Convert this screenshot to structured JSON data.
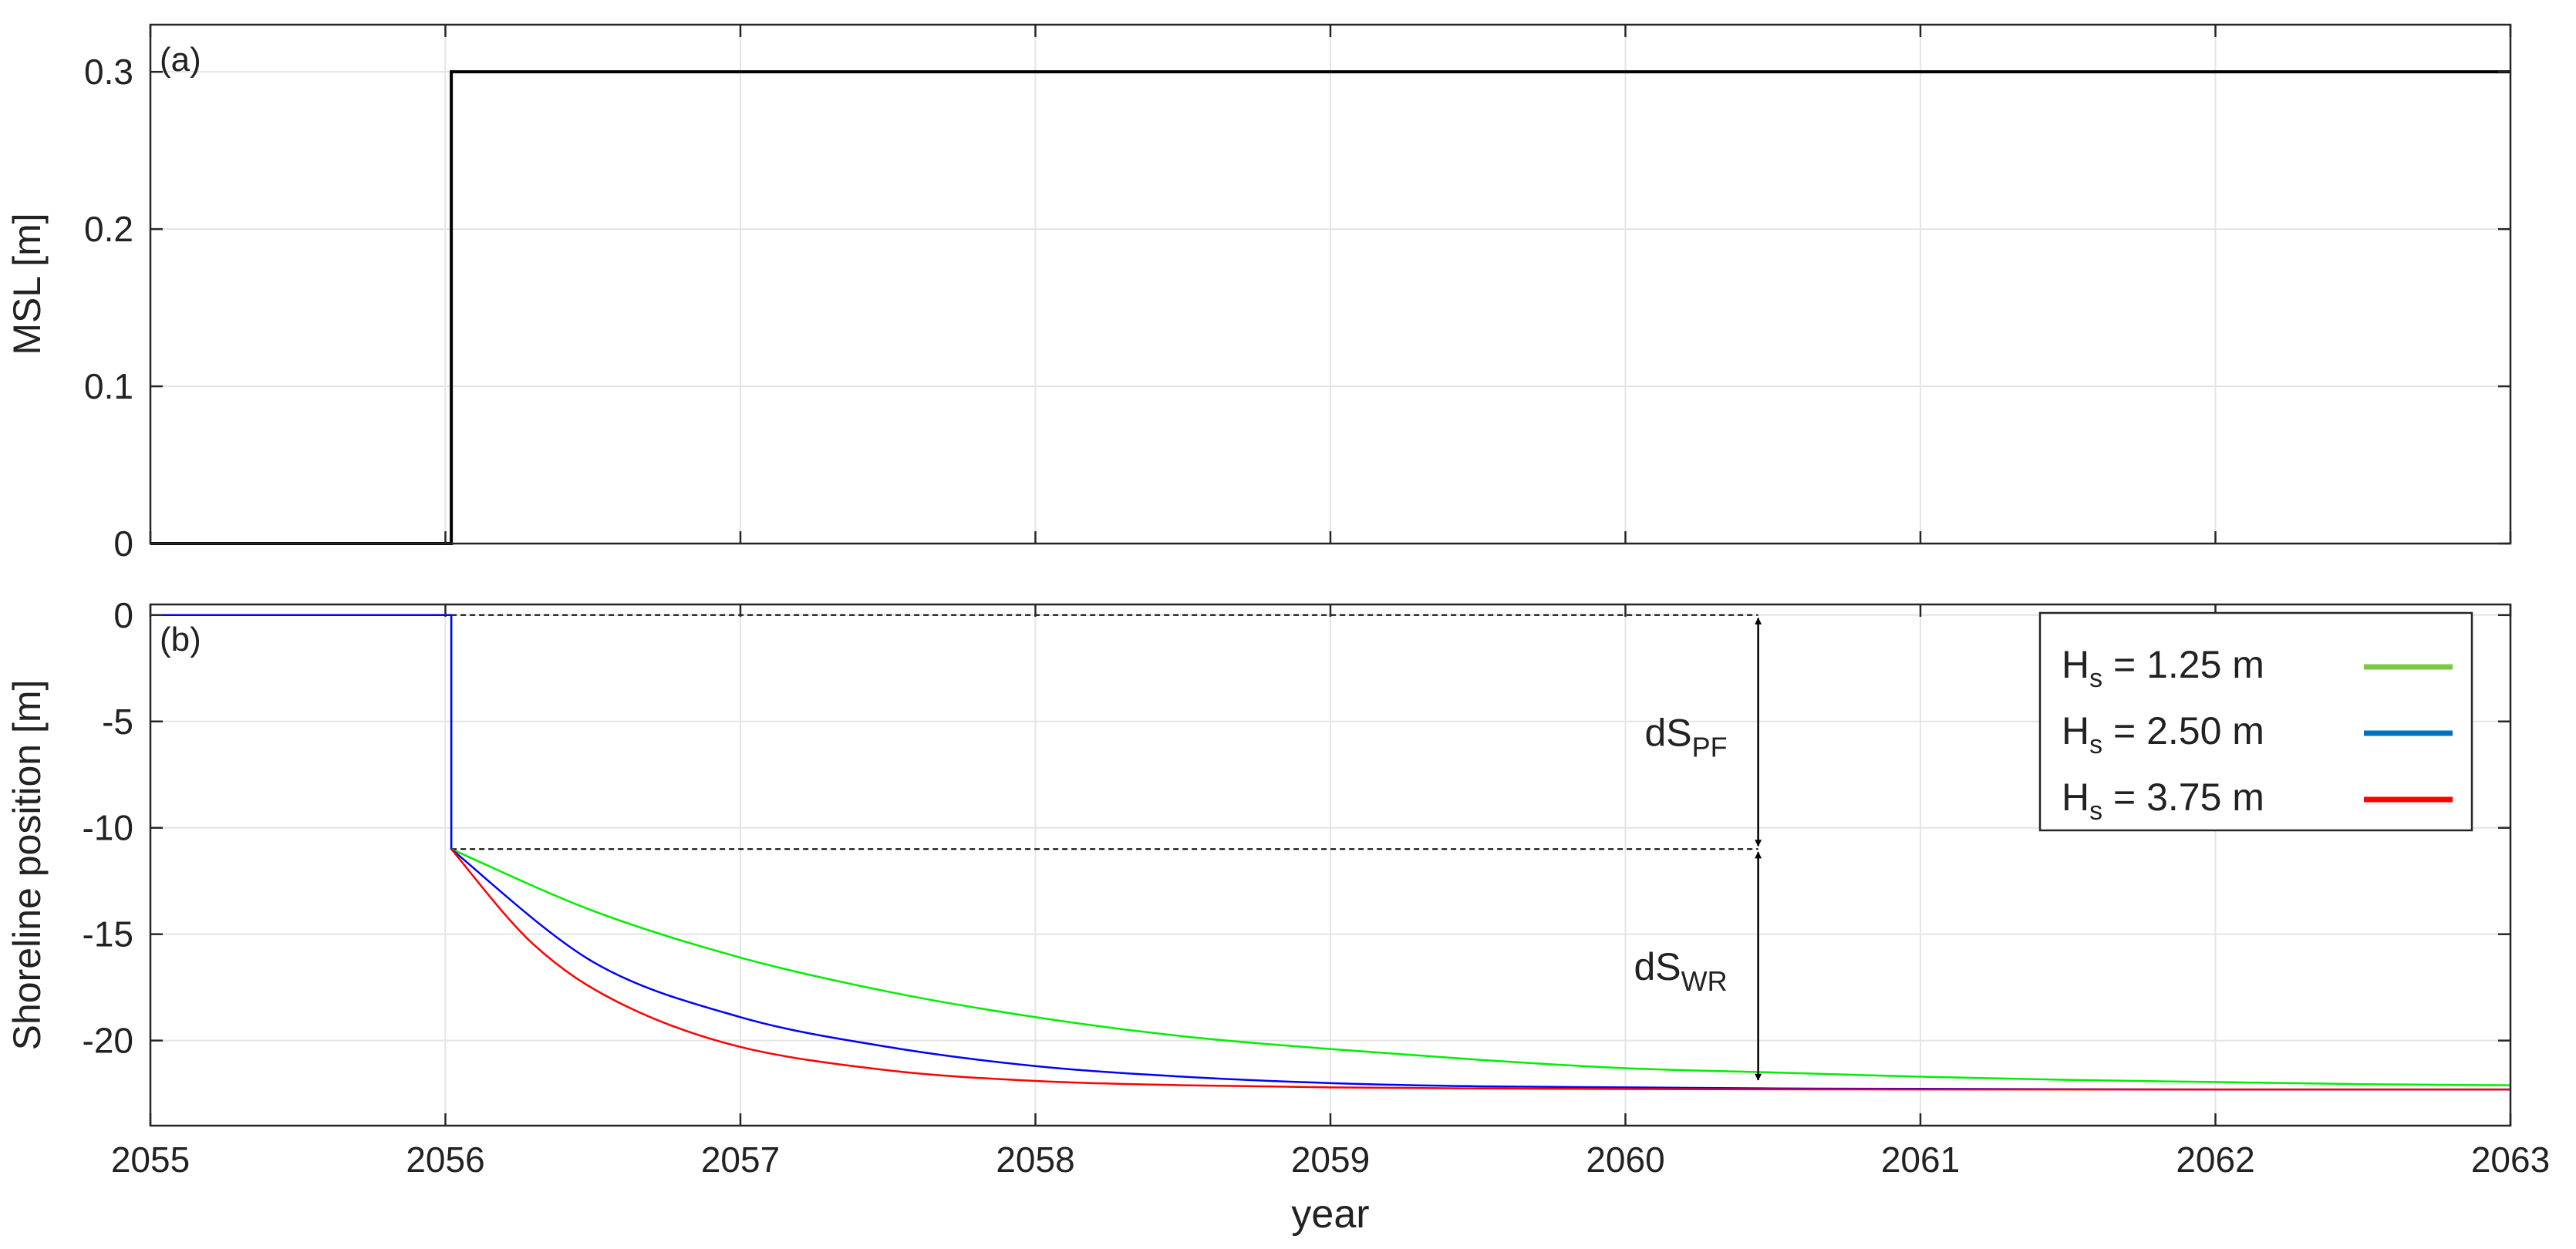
{
  "chart_data": [
    {
      "panel": "(a)",
      "type": "line",
      "ylabel": "MSL [m]",
      "xlim": [
        2055,
        2063
      ],
      "ylim": [
        0,
        0.33
      ],
      "yticks": [
        0,
        0.1,
        0.2,
        0.3
      ],
      "ytick_labels": [
        "0",
        "0.1",
        "0.2",
        "0.3"
      ],
      "xticks": [
        2055,
        2056,
        2057,
        2058,
        2059,
        2060,
        2061,
        2062,
        2063
      ],
      "grid": true,
      "series": [
        {
          "color": "#000000",
          "x": [
            2055,
            2056.02,
            2056.02,
            2063
          ],
          "y": [
            0,
            0,
            0.3,
            0.3
          ]
        }
      ]
    },
    {
      "panel": "(b)",
      "type": "line",
      "ylabel": "Shoreline position [m]",
      "xlabel": "year",
      "xlim": [
        2055,
        2063
      ],
      "ylim": [
        -24,
        0.5
      ],
      "yticks": [
        0,
        -5,
        -10,
        -15,
        -20
      ],
      "ytick_labels": [
        "0",
        "-5",
        "-10",
        "-15",
        "-20"
      ],
      "xticks": [
        2055,
        2056,
        2057,
        2058,
        2059,
        2060,
        2061,
        2062,
        2063
      ],
      "xtick_labels": [
        "2055",
        "2056",
        "2057",
        "2058",
        "2059",
        "2060",
        "2061",
        "2062",
        "2063"
      ],
      "grid": true,
      "legend_position": "top-right",
      "series": [
        {
          "name": "H",
          "name_sub": "s",
          "name_rest": " = 1.25 m",
          "color": "#00ee00",
          "legend_color": "#7ac943",
          "x": [
            2055,
            2056.02,
            2056.02,
            2056.5,
            2057,
            2057.5,
            2058,
            2058.5,
            2059,
            2059.5,
            2060,
            2060.5,
            2061,
            2061.5,
            2062,
            2062.5,
            2063
          ],
          "y": [
            0,
            0,
            -11,
            -13.9,
            -16.1,
            -17.7,
            -18.9,
            -19.8,
            -20.4,
            -20.9,
            -21.3,
            -21.5,
            -21.7,
            -21.85,
            -21.95,
            -22.05,
            -22.1
          ]
        },
        {
          "name": "H",
          "name_sub": "s",
          "name_rest": " = 2.50 m",
          "color": "#0000ff",
          "legend_color": "#0072bd",
          "x": [
            2055,
            2056.02,
            2056.02,
            2056.5,
            2057,
            2057.5,
            2058,
            2058.5,
            2059,
            2059.5,
            2060,
            2060.5,
            2061,
            2062,
            2063
          ],
          "y": [
            0,
            0,
            -11,
            -16.3,
            -18.9,
            -20.3,
            -21.2,
            -21.7,
            -22.0,
            -22.15,
            -22.2,
            -22.25,
            -22.27,
            -22.3,
            -22.3
          ]
        },
        {
          "name": "H",
          "name_sub": "s",
          "name_rest": " = 3.75 m",
          "color": "#ff0000",
          "legend_color": "#ff0000",
          "x": [
            2056.02,
            2056.3,
            2056.6,
            2057,
            2057.5,
            2058,
            2058.5,
            2059,
            2059.5,
            2060,
            2061,
            2062,
            2063
          ],
          "y": [
            -11,
            -15.5,
            -18.3,
            -20.3,
            -21.4,
            -21.9,
            -22.1,
            -22.2,
            -22.25,
            -22.28,
            -22.3,
            -22.3,
            -22.3
          ]
        }
      ],
      "annotations": [
        {
          "label": "dS",
          "label_sub": "PF",
          "x": 2060.45,
          "from": 0,
          "to": -11
        },
        {
          "label": "dS",
          "label_sub": "WR",
          "x": 2060.45,
          "from": -11,
          "to": -22
        }
      ],
      "reference_lines": [
        {
          "style": "dashed",
          "y": 0,
          "x_from": 2056.02,
          "x_to": 2060.45
        },
        {
          "style": "dashed",
          "y": -11,
          "x_from": 2056.02,
          "x_to": 2060.45
        }
      ]
    }
  ]
}
